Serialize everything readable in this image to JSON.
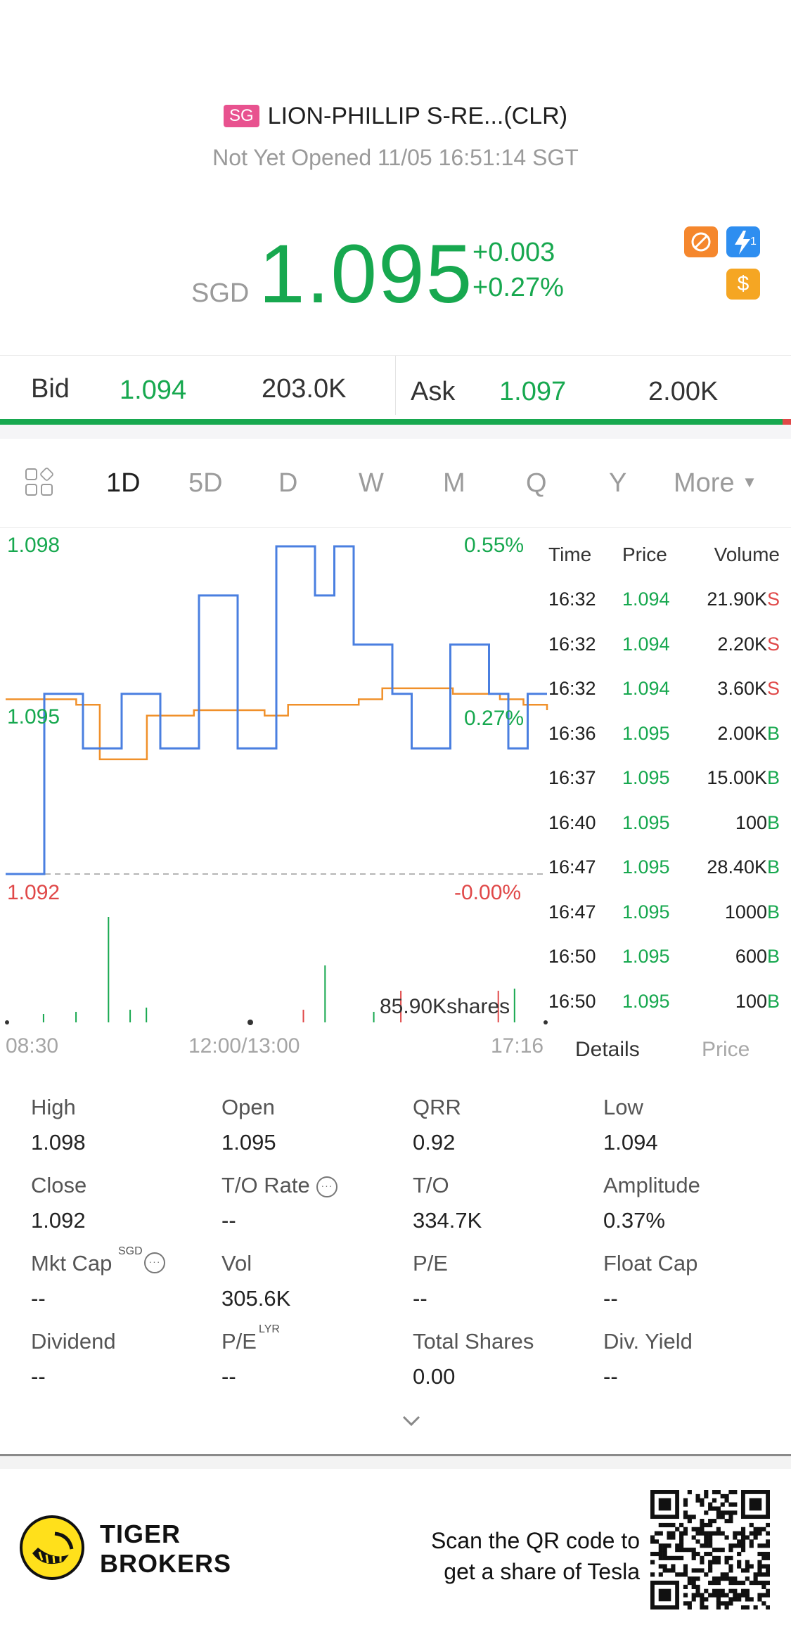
{
  "header": {
    "market_badge": "SG",
    "title": "LION-PHILLIP S-RE...(CLR)",
    "status": "Not Yet Opened 11/05 16:51:14 SGT",
    "currency": "SGD",
    "price": "1.095",
    "change": "+0.003",
    "change_pct": "+0.27%",
    "icons": [
      "no-short-icon",
      "flash-icon",
      "dollar-icon"
    ],
    "flash_icon_num": "1",
    "dollar_icon_glyph": "$"
  },
  "bidask": {
    "bid_label": "Bid",
    "bid_price": "1.094",
    "bid_volume": "203.0K",
    "ask_label": "Ask",
    "ask_price": "1.097",
    "ask_volume": "2.00K"
  },
  "tabs": [
    "1D",
    "5D",
    "D",
    "W",
    "M",
    "Q",
    "Y",
    "More"
  ],
  "active_tab": "1D",
  "chart": {
    "y_high": "1.098",
    "y_mid": "1.095",
    "y_low": "1.092",
    "pct_high": "0.55%",
    "pct_mid": "0.27%",
    "pct_low": "-0.00%",
    "volume_label": "85.90Kshares",
    "x_start": "08:30",
    "x_mid": "12:00/13:00",
    "x_end": "17:16"
  },
  "chart_data": {
    "type": "line",
    "ylim": [
      1.092,
      1.098
    ],
    "prev_close": 1.092,
    "series": [
      {
        "color": "#4a7fe0",
        "values": [
          1.092,
          1.092,
          1.0953,
          1.0953,
          1.0943,
          1.0943,
          1.0953,
          1.0953,
          1.0943,
          1.0943,
          1.0971,
          1.0971,
          1.0943,
          1.0943,
          1.098,
          1.098,
          1.0971,
          1.098,
          1.0962,
          1.0962,
          1.0953,
          1.0943,
          1.0943,
          1.0962,
          1.0962,
          1.0953,
          1.0943,
          1.0953,
          1.0953
        ]
      },
      {
        "color": "#f0902a",
        "values": [
          1.0952,
          1.0952,
          1.0952,
          1.0951,
          1.0941,
          1.0941,
          1.0949,
          1.0949,
          1.095,
          1.095,
          1.095,
          1.0949,
          1.0951,
          1.0951,
          1.0951,
          1.0952,
          1.0954,
          1.0954,
          1.0954,
          1.0953,
          1.0953,
          1.0952,
          1.0951,
          1.095
        ]
      }
    ],
    "volume_bars": [
      {
        "t": 0.07,
        "v": 0.08,
        "c": "green"
      },
      {
        "t": 0.13,
        "v": 0.1,
        "c": "green"
      },
      {
        "t": 0.19,
        "v": 1.0,
        "c": "green"
      },
      {
        "t": 0.23,
        "v": 0.12,
        "c": "green"
      },
      {
        "t": 0.26,
        "v": 0.14,
        "c": "green"
      },
      {
        "t": 0.55,
        "v": 0.12,
        "c": "red"
      },
      {
        "t": 0.59,
        "v": 0.54,
        "c": "green"
      },
      {
        "t": 0.68,
        "v": 0.1,
        "c": "green"
      },
      {
        "t": 0.73,
        "v": 0.3,
        "c": "red"
      },
      {
        "t": 0.91,
        "v": 0.3,
        "c": "red"
      },
      {
        "t": 0.94,
        "v": 0.32,
        "c": "green"
      }
    ]
  },
  "ticks": {
    "headers": {
      "time": "Time",
      "price": "Price",
      "volume": "Volume"
    },
    "rows": [
      {
        "time": "16:32",
        "price": "1.094",
        "volume": "21.90K",
        "side": "S"
      },
      {
        "time": "16:32",
        "price": "1.094",
        "volume": "2.20K",
        "side": "S"
      },
      {
        "time": "16:32",
        "price": "1.094",
        "volume": "3.60K",
        "side": "S"
      },
      {
        "time": "16:36",
        "price": "1.095",
        "volume": "2.00K",
        "side": "B"
      },
      {
        "time": "16:37",
        "price": "1.095",
        "volume": "15.00K",
        "side": "B"
      },
      {
        "time": "16:40",
        "price": "1.095",
        "volume": "100",
        "side": "B"
      },
      {
        "time": "16:47",
        "price": "1.095",
        "volume": "28.40K",
        "side": "B"
      },
      {
        "time": "16:47",
        "price": "1.095",
        "volume": "1000",
        "side": "B"
      },
      {
        "time": "16:50",
        "price": "1.095",
        "volume": "600",
        "side": "B"
      },
      {
        "time": "16:50",
        "price": "1.095",
        "volume": "100",
        "side": "B"
      }
    ],
    "details_tab": "Details",
    "price_tab": "Price"
  },
  "stats": [
    {
      "label": "High",
      "value": "1.098"
    },
    {
      "label": "Open",
      "value": "1.095"
    },
    {
      "label": "QRR",
      "value": "0.92"
    },
    {
      "label": "Low",
      "value": "1.094"
    },
    {
      "label": "Close",
      "value": "1.092"
    },
    {
      "label": "T/O Rate",
      "value": "--"
    },
    {
      "label": "T/O",
      "value": "334.7K"
    },
    {
      "label": "Amplitude",
      "value": "0.37%"
    },
    {
      "label": "Mkt Cap",
      "value": "--",
      "sup": "SGD"
    },
    {
      "label": "Vol",
      "value": "305.6K"
    },
    {
      "label": "P/E",
      "value": "--"
    },
    {
      "label": "Float Cap",
      "value": "--"
    },
    {
      "label": "Dividend",
      "value": "--"
    },
    {
      "label": "P/E",
      "value": "--",
      "sup": "LYR"
    },
    {
      "label": "Total Shares",
      "value": "0.00"
    },
    {
      "label": "Div. Yield",
      "value": "--"
    }
  ],
  "footer": {
    "brand_line1": "TIGER",
    "brand_line2": "BROKERS",
    "promo_line1": "Scan the QR code to",
    "promo_line2": "get a share of Tesla"
  },
  "colors": {
    "up": "#17a84f",
    "down": "#e04848",
    "line_price": "#4a7fe0",
    "line_avg": "#f0902a"
  }
}
